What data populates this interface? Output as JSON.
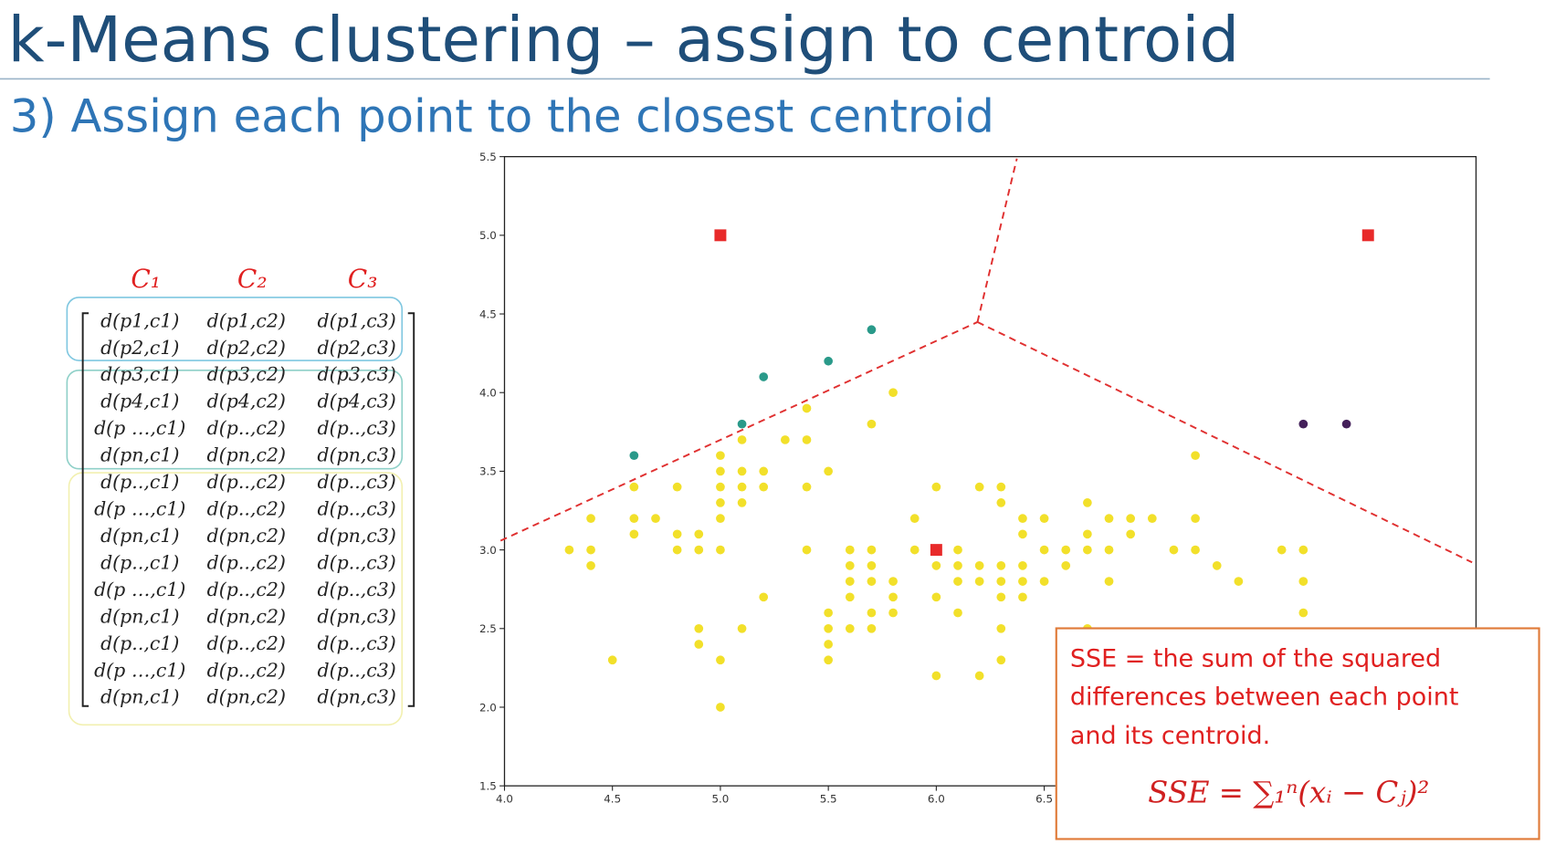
{
  "title": "k-Means clustering – assign to centroid",
  "subtitle": "3) Assign each point to the closest centroid",
  "matrix": {
    "headers": [
      "C₁",
      "C₂",
      "C₃"
    ],
    "rows": [
      [
        "d(p1,c1)",
        "d(p1,c2)",
        "d(p1,c3)"
      ],
      [
        "d(p2,c1)",
        "d(p2,c2)",
        "d(p2,c3)"
      ],
      [
        "d(p3,c1)",
        "d(p3,c2)",
        "d(p3,c3)"
      ],
      [
        "d(p4,c1)",
        "d(p4,c2)",
        "d(p4,c3)"
      ],
      [
        "d(p …,c1)",
        "d(p..,c2)",
        "d(p..,c3)"
      ],
      [
        "d(pn,c1)",
        "d(pn,c2)",
        "d(pn,c3)"
      ],
      [
        "d(p..,c1)",
        "d(p..,c2)",
        "d(p..,c3)"
      ],
      [
        "d(p …,c1)",
        "d(p..,c2)",
        "d(p..,c3)"
      ],
      [
        "d(pn,c1)",
        "d(pn,c2)",
        "d(pn,c3)"
      ],
      [
        "d(p..,c1)",
        "d(p..,c2)",
        "d(p..,c3)"
      ],
      [
        "d(p …,c1)",
        "d(p..,c2)",
        "d(p..,c3)"
      ],
      [
        "d(pn,c1)",
        "d(pn,c2)",
        "d(pn,c3)"
      ],
      [
        "d(p..,c1)",
        "d(p..,c2)",
        "d(p..,c3)"
      ],
      [
        "d(p …,c1)",
        "d(p..,c2)",
        "d(p..,c3)"
      ],
      [
        "d(pn,c1)",
        "d(pn,c2)",
        "d(pn,c3)"
      ]
    ]
  },
  "sse": {
    "lines": [
      "SSE = the sum of the squared",
      "differences between each point",
      "and its centroid."
    ],
    "formula": "SSE  = ∑₁ⁿ(xᵢ − Cⱼ)²"
  },
  "chart_data": {
    "type": "scatter",
    "xlim": [
      4.0,
      8.5
    ],
    "ylim": [
      1.5,
      5.5
    ],
    "xticks": [
      {
        "value": 4,
        "label": "4.0"
      },
      4.5,
      {
        "value": 5,
        "label": "5.0"
      },
      5.5,
      {
        "value": 6,
        "label": "6.0"
      },
      6.5
    ],
    "yticks": [
      1.5,
      {
        "value": 2,
        "label": "2.0"
      },
      2.5,
      {
        "value": 3,
        "label": "3.0"
      },
      3.5,
      {
        "value": 4,
        "label": "4.0"
      },
      4.5,
      {
        "value": 5,
        "label": "5.0"
      },
      5.5
    ],
    "series": [
      {
        "color": "#f2e02a",
        "marker": "circle",
        "x": [
          4.3,
          4.4,
          4.4,
          4.4,
          4.5,
          4.6,
          4.6,
          4.6,
          4.7,
          4.8,
          4.8,
          4.8,
          4.9,
          4.9,
          4.9,
          4.9,
          5.0,
          5.0,
          5.0,
          5.0,
          5.0,
          5.0,
          5.0,
          5.0,
          5.1,
          5.1,
          5.1,
          5.1,
          5.1,
          5.2,
          5.2,
          5.2,
          5.3,
          5.4,
          5.4,
          5.4,
          5.4,
          5.5,
          5.5,
          5.5,
          5.5,
          5.5,
          5.6,
          5.6,
          5.6,
          5.6,
          5.6,
          5.7,
          5.7,
          5.7,
          5.7,
          5.7,
          5.7,
          5.8,
          5.8,
          5.8,
          5.8,
          5.9,
          5.9,
          6.0,
          6.0,
          6.0,
          6.0,
          6.1,
          6.1,
          6.1,
          6.1,
          6.2,
          6.2,
          6.2,
          6.2,
          6.3,
          6.3,
          6.3,
          6.3,
          6.3,
          6.3,
          6.3,
          6.4,
          6.4,
          6.4,
          6.4,
          6.4,
          6.5,
          6.5,
          6.5,
          6.6,
          6.6,
          6.7,
          6.7,
          6.7,
          6.7,
          6.8,
          6.8,
          6.8,
          6.9,
          6.9,
          7.0,
          7.1,
          7.2,
          7.2,
          7.2,
          7.3,
          7.4,
          7.6,
          7.7,
          7.7,
          7.7
        ],
        "values": [
          3.0,
          3.2,
          3.0,
          2.9,
          2.3,
          3.4,
          3.2,
          3.1,
          3.2,
          3.4,
          3.1,
          3.0,
          3.1,
          3.0,
          2.5,
          2.4,
          3.6,
          3.5,
          3.4,
          3.3,
          3.2,
          3.0,
          2.3,
          2.0,
          3.7,
          3.5,
          3.4,
          3.3,
          2.5,
          3.5,
          3.4,
          2.7,
          3.7,
          3.9,
          3.7,
          3.4,
          3.0,
          3.5,
          2.6,
          2.5,
          2.4,
          2.3,
          3.0,
          2.9,
          2.8,
          2.7,
          2.5,
          3.8,
          3.0,
          2.9,
          2.8,
          2.6,
          2.5,
          4.0,
          2.8,
          2.7,
          2.6,
          3.2,
          3.0,
          3.4,
          2.9,
          2.7,
          2.2,
          3.0,
          2.9,
          2.8,
          2.6,
          3.4,
          2.9,
          2.8,
          2.2,
          3.4,
          3.3,
          2.9,
          2.8,
          2.7,
          2.5,
          2.3,
          3.2,
          3.1,
          2.9,
          2.8,
          2.7,
          3.2,
          3.0,
          2.8,
          3.0,
          2.9,
          3.3,
          3.1,
          3.0,
          2.5,
          3.2,
          3.0,
          2.8,
          3.2,
          3.1,
          3.2,
          3.0,
          3.6,
          3.2,
          3.0,
          2.9,
          2.8,
          3.0,
          3.0,
          2.8,
          2.6
        ]
      },
      {
        "color": "#2a9a8a",
        "marker": "circle",
        "x": [
          4.6,
          5.1,
          5.2,
          5.5,
          5.7
        ],
        "values": [
          3.6,
          3.8,
          4.1,
          4.2,
          4.4
        ]
      },
      {
        "color": "#44205a",
        "marker": "circle",
        "x": [
          7.7,
          7.9
        ],
        "values": [
          3.8,
          3.8
        ]
      },
      {
        "color": "#e82a2a",
        "marker": "square",
        "x": [
          5.0,
          8.0,
          6.0
        ],
        "values": [
          5.0,
          5.0,
          3.0
        ]
      }
    ]
  }
}
